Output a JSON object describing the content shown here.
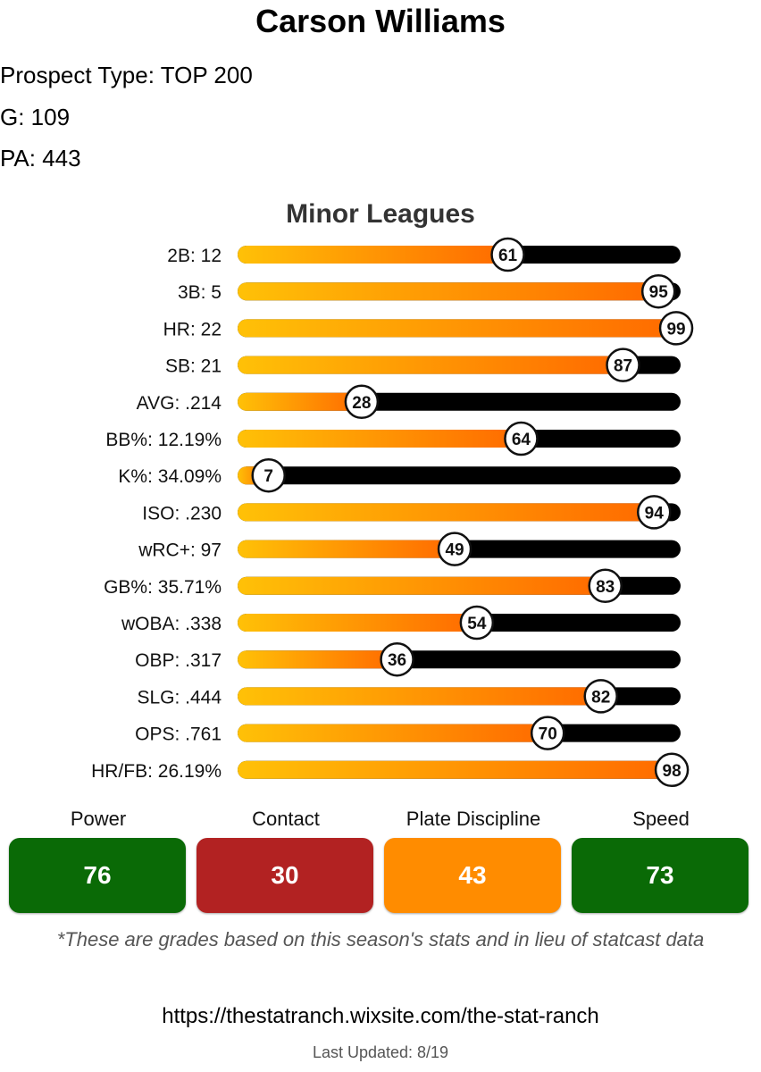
{
  "title": "Carson Williams",
  "info": {
    "prospect_type": "Prospect Type: TOP 200",
    "games": "G: 109",
    "pa": "PA: 443"
  },
  "section_title": "Minor Leagues",
  "chart_data": {
    "type": "bar",
    "title": "Minor Leagues",
    "categories": [
      "2B: 12",
      "3B: 5",
      "HR: 22",
      "SB: 21",
      "AVG: .214",
      "BB%: 12.19%",
      "K%: 34.09%",
      "ISO: .230",
      "wRC+: 97",
      "GB%: 35.71%",
      "wOBA: .338",
      "OBP: .317",
      "SLG: .444",
      "OPS: .761",
      "HR/FB: 26.19%"
    ],
    "values": [
      61,
      95,
      99,
      87,
      28,
      64,
      7,
      94,
      49,
      83,
      54,
      36,
      82,
      70,
      98
    ],
    "xlim": [
      0,
      100
    ],
    "colors": {
      "fill_start": "#ffc107",
      "fill_end": "#ff6a00",
      "track": "#000000"
    }
  },
  "grades": [
    {
      "label": "Power",
      "value": "76",
      "color": "#0a6a06"
    },
    {
      "label": "Contact",
      "value": "30",
      "color": "#b22222"
    },
    {
      "label": "Plate Discipline",
      "value": "43",
      "color": "#ff8c00"
    },
    {
      "label": "Speed",
      "value": "73",
      "color": "#0a6a06"
    }
  ],
  "footnote": "*These are grades based on this season's stats and in lieu of statcast data",
  "url": "https://thestatranch.wixsite.com/the-stat-ranch",
  "last_updated": "Last Updated: 8/19"
}
